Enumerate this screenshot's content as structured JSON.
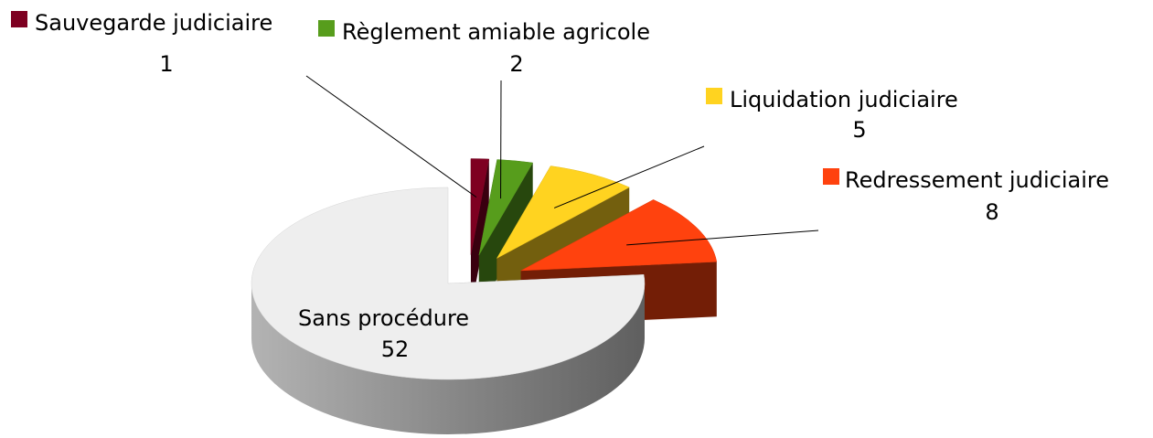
{
  "chart_data": {
    "type": "pie3d",
    "categories": [
      "Sauvegarde judiciaire",
      "Règlement amiable agricole",
      "Liquidation judiciaire",
      "Redressement judiciaire",
      "Sans procédure"
    ],
    "values": [
      1,
      2,
      5,
      8,
      52
    ],
    "colors": [
      "#7e0021",
      "#579d1c",
      "#ffd320",
      "#ff420e",
      "#eeeeee"
    ]
  }
}
